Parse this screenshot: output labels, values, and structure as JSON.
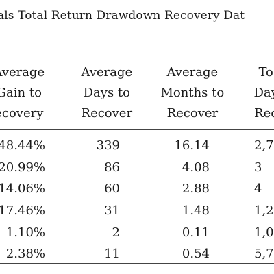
{
  "table": {
    "title": "als Total Return Drawdown Recovery Dat",
    "columns": [
      {
        "lines": [
          "Average",
          "Gain to",
          "ecovery"
        ]
      },
      {
        "lines": [
          "Average",
          "Days to",
          "Recover"
        ]
      },
      {
        "lines": [
          "Average",
          "Months to",
          "Recover"
        ]
      },
      {
        "lines": [
          "To",
          "Day",
          "Rec"
        ]
      }
    ],
    "rows": [
      {
        "gain": "48.44%",
        "days": "339",
        "months": "16.14",
        "total": "2,7"
      },
      {
        "gain": "20.99%",
        "days": "86",
        "months": "4.08",
        "total": "3"
      },
      {
        "gain": "14.06%",
        "days": "60",
        "months": "2.88",
        "total": "4"
      },
      {
        "gain": "17.46%",
        "days": "31",
        "months": "1.48",
        "total": "1,2"
      },
      {
        "gain": "1.10%",
        "days": "2",
        "months": "0.11",
        "total": "1,0"
      },
      {
        "gain": "2.38%",
        "days": "11",
        "months": "0.54",
        "total": "5,7"
      }
    ]
  }
}
